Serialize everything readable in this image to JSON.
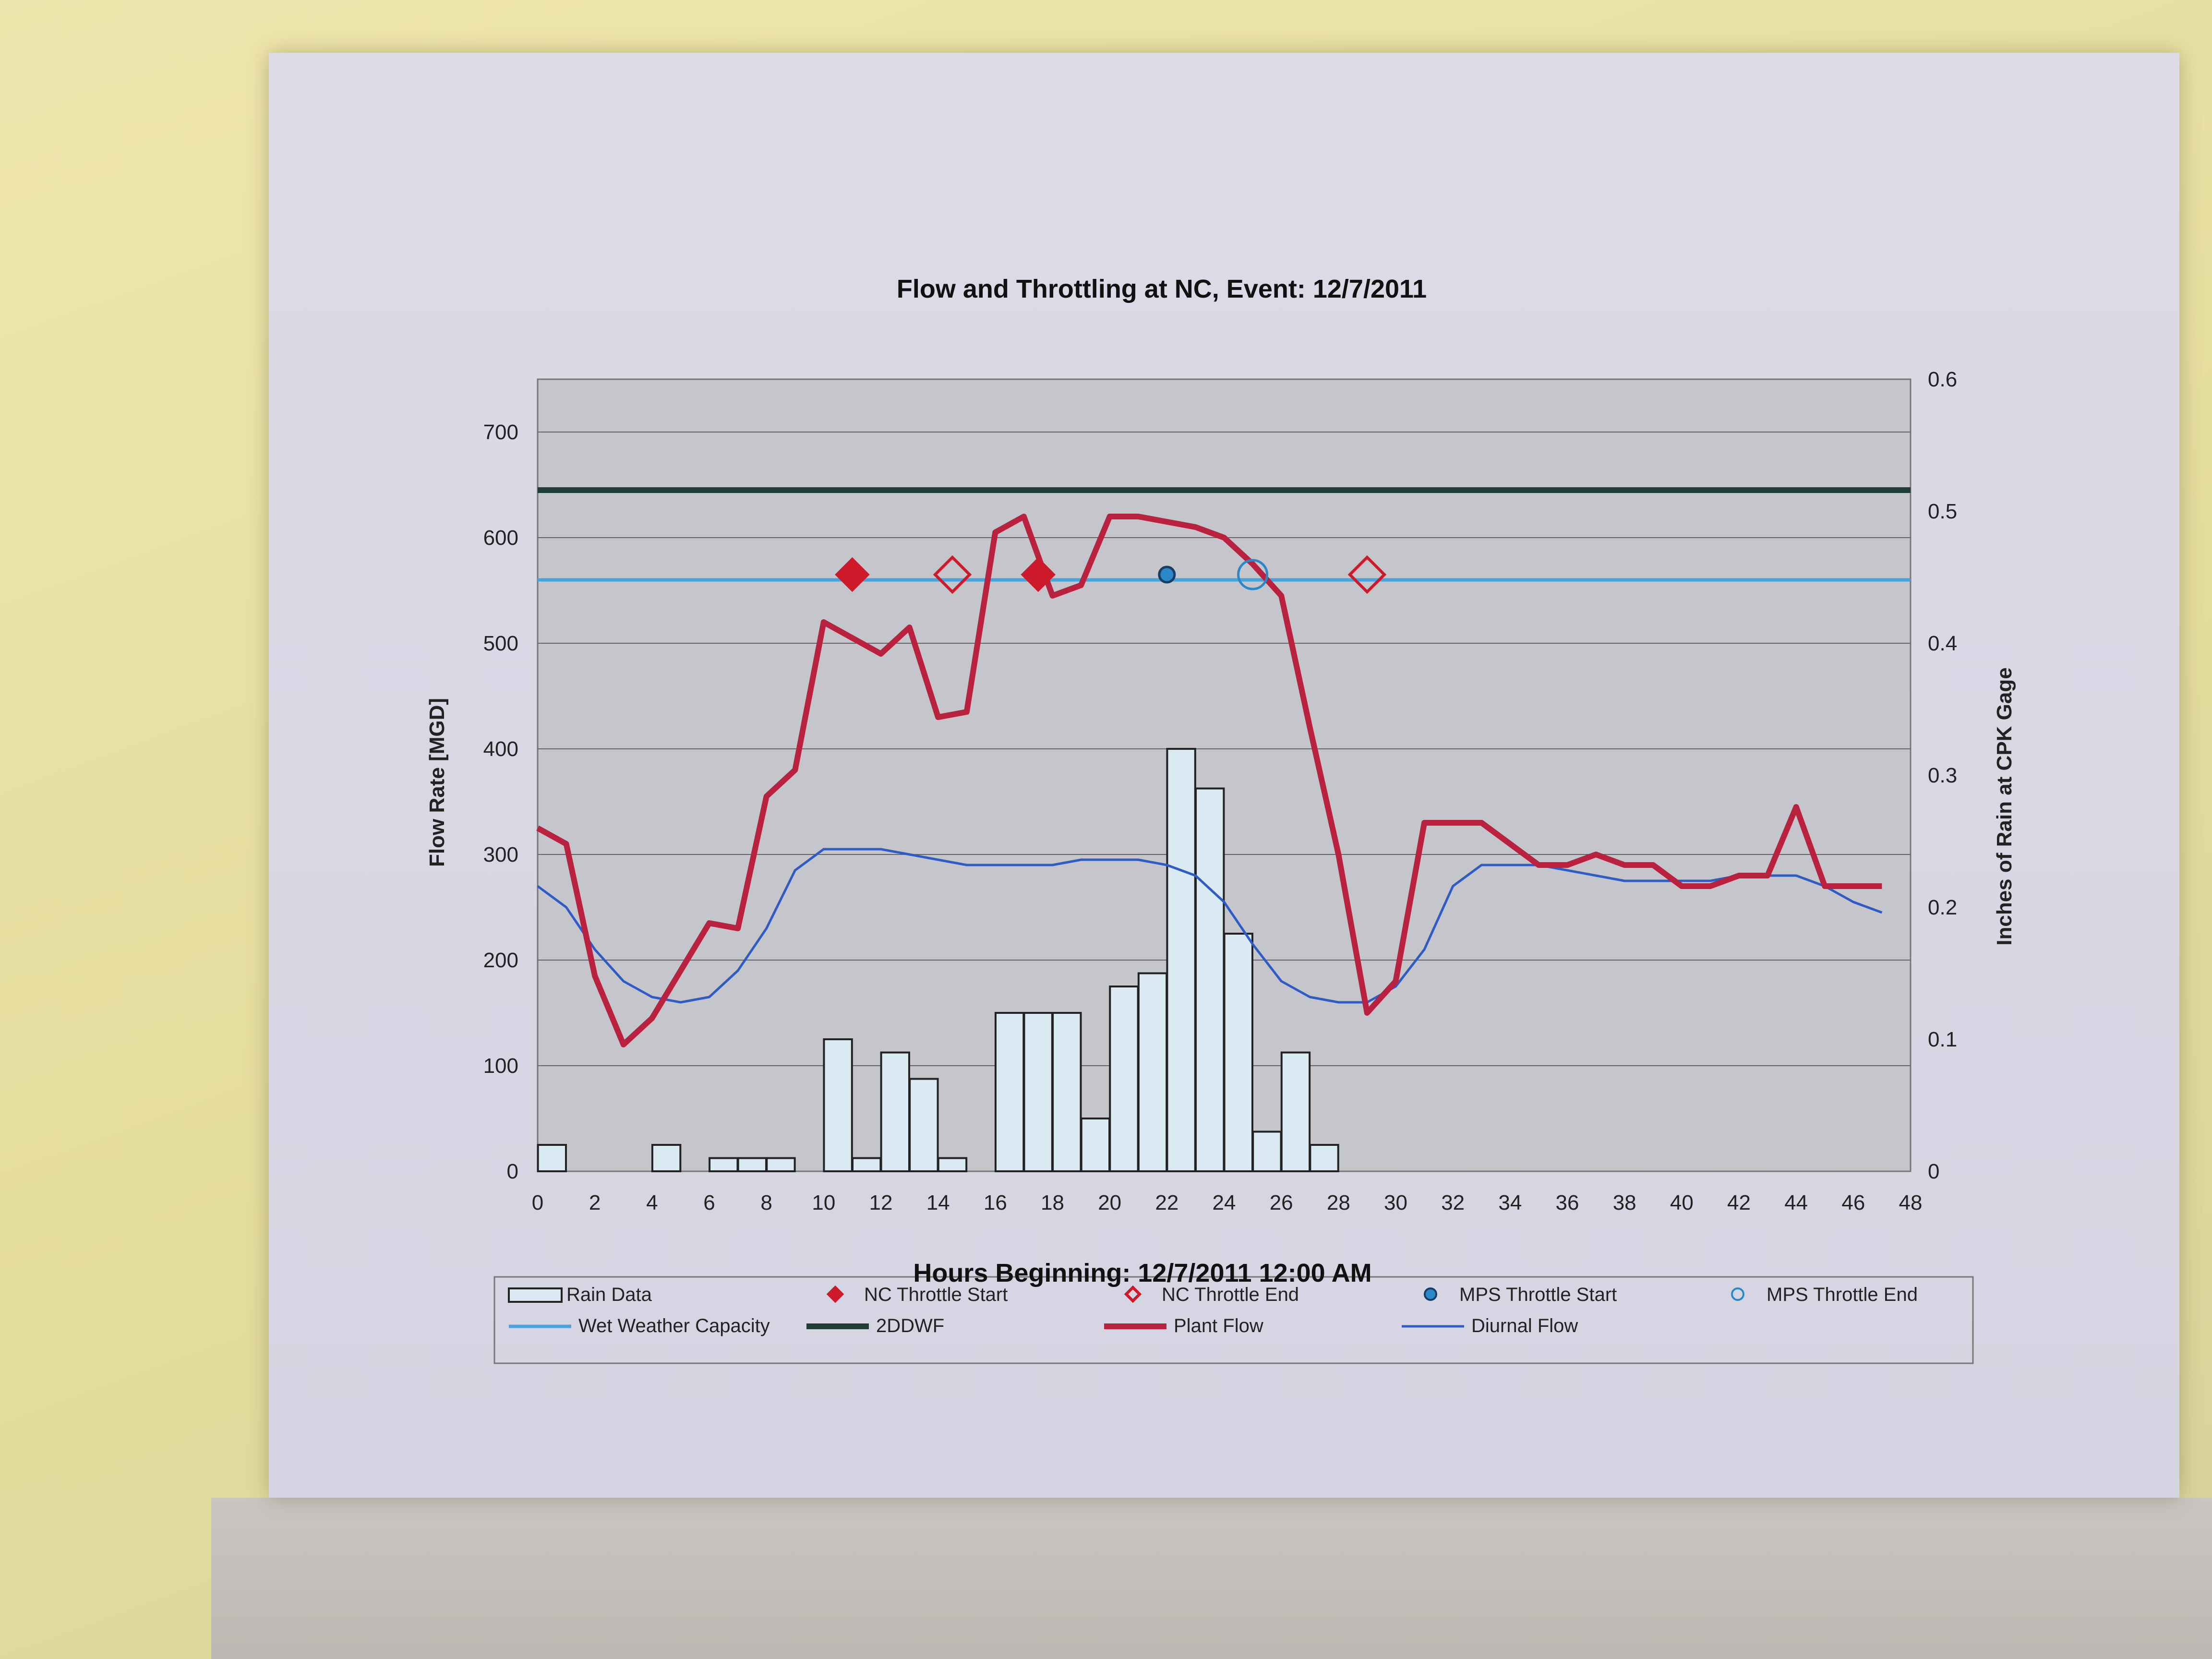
{
  "chart_data": {
    "type": "bar",
    "title": "Flow and Throttling at NC, Event:  12/7/2011",
    "xlabel": "Hours Beginning: 12/7/2011 12:00 AM",
    "ylabel": "Flow Rate [MGD]",
    "y2label": "Inches of Rain at CPK Gage",
    "xlim": [
      0,
      48
    ],
    "ylim": [
      0,
      750
    ],
    "y2lim": [
      0,
      0.6
    ],
    "x_ticks": [
      "0",
      "2",
      "4",
      "6",
      "8",
      "10",
      "12",
      "14",
      "16",
      "18",
      "20",
      "22",
      "24",
      "26",
      "28",
      "30",
      "32",
      "34",
      "36",
      "38",
      "40",
      "42",
      "44",
      "46",
      "48"
    ],
    "y_ticks": [
      "0",
      "100",
      "200",
      "300",
      "400",
      "500",
      "600",
      "700"
    ],
    "y2_ticks": [
      "0",
      "0.1",
      "0.2",
      "0.3",
      "0.4",
      "0.5",
      "0.6"
    ],
    "grid": true,
    "legend_position": "bottom",
    "colors": {
      "plot_bg": "#c4c6cc",
      "rain": "#d9eaf2",
      "wet_weather": "#49a4dc",
      "ddwf": "#1f3d34",
      "plant_flow": "#b8223e",
      "diurnal": "#2f5bc4",
      "nc_marker": "#cc1a2a",
      "mps_marker": "#2a88c8"
    },
    "series": [
      {
        "name": "Rain Data",
        "type": "bar",
        "axis": "y2",
        "x": [
          0,
          1,
          2,
          3,
          4,
          5,
          6,
          7,
          8,
          9,
          10,
          11,
          12,
          13,
          14,
          15,
          16,
          17,
          18,
          19,
          20,
          21,
          22,
          23,
          24,
          25,
          26,
          27,
          28,
          29,
          30,
          31,
          32,
          33,
          34,
          35,
          36,
          37,
          38,
          39,
          40,
          41,
          42,
          43,
          44,
          45,
          46,
          47
        ],
        "values": [
          0.02,
          0,
          0,
          0,
          0.02,
          0,
          0.01,
          0.01,
          0.01,
          0,
          0.1,
          0.01,
          0.09,
          0.07,
          0.01,
          0,
          0.12,
          0.12,
          0.12,
          0.04,
          0.14,
          0.15,
          0.32,
          0.29,
          0.18,
          0.03,
          0.09,
          0.02,
          0,
          0,
          0,
          0,
          0,
          0,
          0,
          0,
          0,
          0,
          0,
          0,
          0,
          0,
          0,
          0,
          0,
          0,
          0,
          0
        ]
      },
      {
        "name": "Wet Weather Capacity",
        "type": "line",
        "axis": "y",
        "x": [
          0,
          1,
          2,
          3,
          4,
          5,
          6,
          7,
          8,
          9,
          10,
          11,
          12,
          13,
          14,
          15,
          16,
          17,
          18,
          19,
          20,
          21,
          22,
          23,
          24,
          25,
          26,
          27,
          28,
          29,
          30,
          31,
          32,
          33,
          34,
          35,
          36,
          37,
          38,
          39,
          40,
          41,
          42,
          43,
          44,
          45,
          46,
          47,
          48
        ],
        "values": [
          560,
          560,
          560,
          560,
          560,
          560,
          560,
          560,
          560,
          560,
          560,
          560,
          560,
          560,
          560,
          560,
          560,
          560,
          560,
          560,
          560,
          560,
          560,
          560,
          560,
          560,
          560,
          560,
          560,
          560,
          560,
          560,
          560,
          560,
          560,
          560,
          560,
          560,
          560,
          560,
          560,
          560,
          560,
          560,
          560,
          560,
          560,
          560,
          560
        ]
      },
      {
        "name": "2DDWF",
        "type": "line",
        "axis": "y",
        "x": [
          0,
          1,
          2,
          3,
          4,
          5,
          6,
          7,
          8,
          9,
          10,
          11,
          12,
          13,
          14,
          15,
          16,
          17,
          18,
          19,
          20,
          21,
          22,
          23,
          24,
          25,
          26,
          27,
          28,
          29,
          30,
          31,
          32,
          33,
          34,
          35,
          36,
          37,
          38,
          39,
          40,
          41,
          42,
          43,
          44,
          45,
          46,
          47,
          48
        ],
        "values": [
          645,
          645,
          645,
          645,
          645,
          645,
          645,
          645,
          645,
          645,
          645,
          645,
          645,
          645,
          645,
          645,
          645,
          645,
          645,
          645,
          645,
          645,
          645,
          645,
          645,
          645,
          645,
          645,
          645,
          645,
          645,
          645,
          645,
          645,
          645,
          645,
          645,
          645,
          645,
          645,
          645,
          645,
          645,
          645,
          645,
          645,
          645,
          645,
          645
        ]
      },
      {
        "name": "Plant Flow",
        "type": "line",
        "axis": "y",
        "x": [
          0,
          1,
          2,
          3,
          4,
          5,
          6,
          7,
          8,
          9,
          10,
          11,
          12,
          13,
          14,
          15,
          16,
          17,
          18,
          19,
          20,
          21,
          22,
          23,
          24,
          25,
          26,
          27,
          28,
          29,
          30,
          31,
          32,
          33,
          34,
          35,
          36,
          37,
          38,
          39,
          40,
          41,
          42,
          43,
          44,
          45,
          46,
          47
        ],
        "values": [
          325,
          310,
          185,
          120,
          145,
          190,
          235,
          230,
          355,
          380,
          520,
          505,
          490,
          515,
          430,
          435,
          605,
          620,
          545,
          555,
          620,
          620,
          615,
          610,
          600,
          575,
          545,
          420,
          300,
          150,
          180,
          330,
          330,
          330,
          310,
          290,
          290,
          300,
          290,
          290,
          270,
          270,
          280,
          280,
          345,
          270,
          270,
          270
        ]
      },
      {
        "name": "Diurnal Flow",
        "type": "line",
        "axis": "y",
        "x": [
          0,
          1,
          2,
          3,
          4,
          5,
          6,
          7,
          8,
          9,
          10,
          11,
          12,
          13,
          14,
          15,
          16,
          17,
          18,
          19,
          20,
          21,
          22,
          23,
          24,
          25,
          26,
          27,
          28,
          29,
          30,
          31,
          32,
          33,
          34,
          35,
          36,
          37,
          38,
          39,
          40,
          41,
          42,
          43,
          44,
          45,
          46,
          47
        ],
        "values": [
          270,
          250,
          210,
          180,
          165,
          160,
          165,
          190,
          230,
          285,
          305,
          305,
          305,
          300,
          295,
          290,
          290,
          290,
          290,
          295,
          295,
          295,
          290,
          280,
          255,
          215,
          180,
          165,
          160,
          160,
          175,
          210,
          270,
          290,
          290,
          290,
          285,
          280,
          275,
          275,
          275,
          275,
          280,
          280,
          280,
          270,
          255,
          245
        ]
      },
      {
        "name": "NC Throttle Start",
        "type": "marker",
        "axis": "y",
        "x": [
          11,
          17.5
        ],
        "values": [
          565,
          565
        ]
      },
      {
        "name": "NC Throttle End",
        "type": "marker",
        "axis": "y",
        "x": [
          14.5,
          29
        ],
        "values": [
          565,
          565
        ]
      },
      {
        "name": "MPS Throttle Start",
        "type": "marker",
        "axis": "y",
        "x": [
          22
        ],
        "values": [
          565
        ]
      },
      {
        "name": "MPS Throttle End",
        "type": "marker",
        "axis": "y",
        "x": [
          25
        ],
        "values": [
          565
        ]
      }
    ]
  }
}
